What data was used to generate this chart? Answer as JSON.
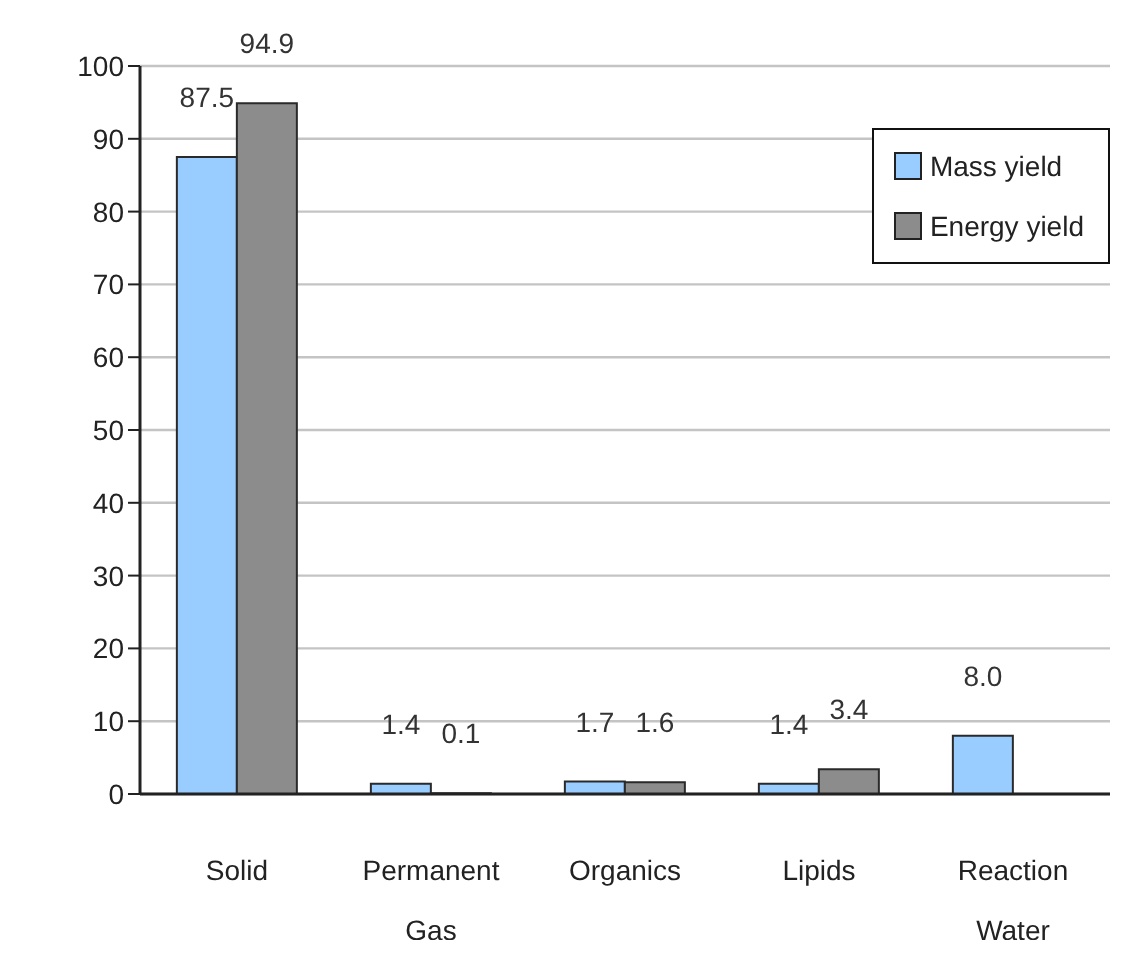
{
  "chart_data": {
    "type": "bar",
    "categories": [
      "Solid",
      "Permanent Gas",
      "Organics",
      "Lipids",
      "Reaction Water"
    ],
    "series": [
      {
        "name": "Mass yield",
        "color": "#99ccff",
        "values": [
          87.5,
          1.4,
          1.7,
          1.4,
          8.0
        ],
        "value_labels": [
          "87.5",
          "1.4",
          "1.7",
          "1.4",
          "8.0"
        ]
      },
      {
        "name": "Energy yield",
        "color": "#8c8c8c",
        "values": [
          94.9,
          0.1,
          1.6,
          3.4,
          null
        ],
        "value_labels": [
          "94.9",
          "0.1",
          "1.6",
          "3.4",
          null
        ]
      }
    ],
    "ylim": [
      0,
      100
    ],
    "yticks": [
      0,
      10,
      20,
      30,
      40,
      50,
      60,
      70,
      80,
      90,
      100
    ],
    "grid": "y",
    "legend": "top right"
  }
}
